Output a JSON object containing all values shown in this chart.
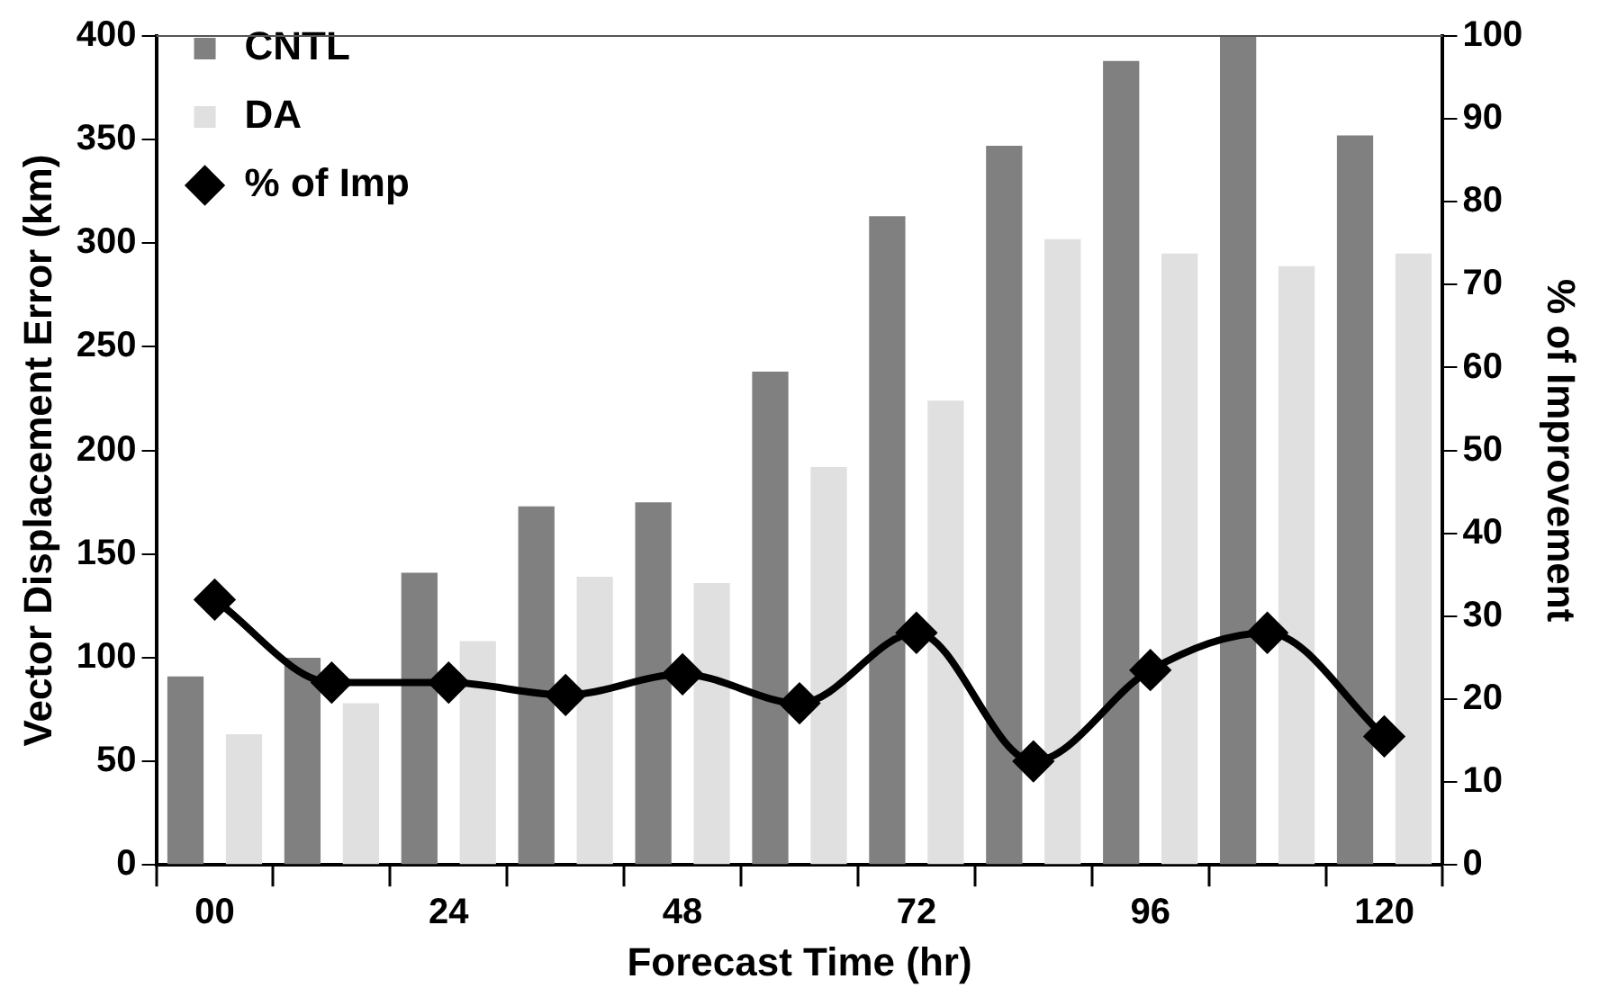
{
  "chart_data": {
    "type": "bar",
    "xlabel": "Forecast Time (hr)",
    "ylabel": "Vector Displacement Error (km)",
    "y2label": "% of Improvement",
    "categories": [
      "00",
      null,
      "24",
      null,
      "48",
      null,
      "72",
      null,
      "96",
      null,
      "120"
    ],
    "series": [
      {
        "name": "CNTL",
        "color": "#808080",
        "values": [
          91,
          100,
          141,
          173,
          175,
          238,
          313,
          347,
          388,
          400,
          352
        ]
      },
      {
        "name": "DA",
        "color": "#e0e0e0",
        "values": [
          63,
          78,
          108,
          139,
          136,
          192,
          224,
          302,
          295,
          289,
          295
        ]
      },
      {
        "name": "% of Imp",
        "type": "line",
        "axis": "y2",
        "color": "#000000",
        "marker": "diamond",
        "line_style": "solid",
        "values": [
          32,
          22,
          22,
          20.5,
          23,
          19.5,
          28,
          12.5,
          23.5,
          28,
          15.5
        ]
      }
    ],
    "ylim": [
      0,
      400
    ],
    "yticks": [
      0,
      50,
      100,
      150,
      200,
      250,
      300,
      350,
      400
    ],
    "y2lim": [
      0,
      100
    ],
    "y2ticks": [
      0,
      10,
      20,
      30,
      40,
      50,
      60,
      70,
      80,
      90,
      100
    ],
    "grid": false,
    "legend": "top left"
  }
}
